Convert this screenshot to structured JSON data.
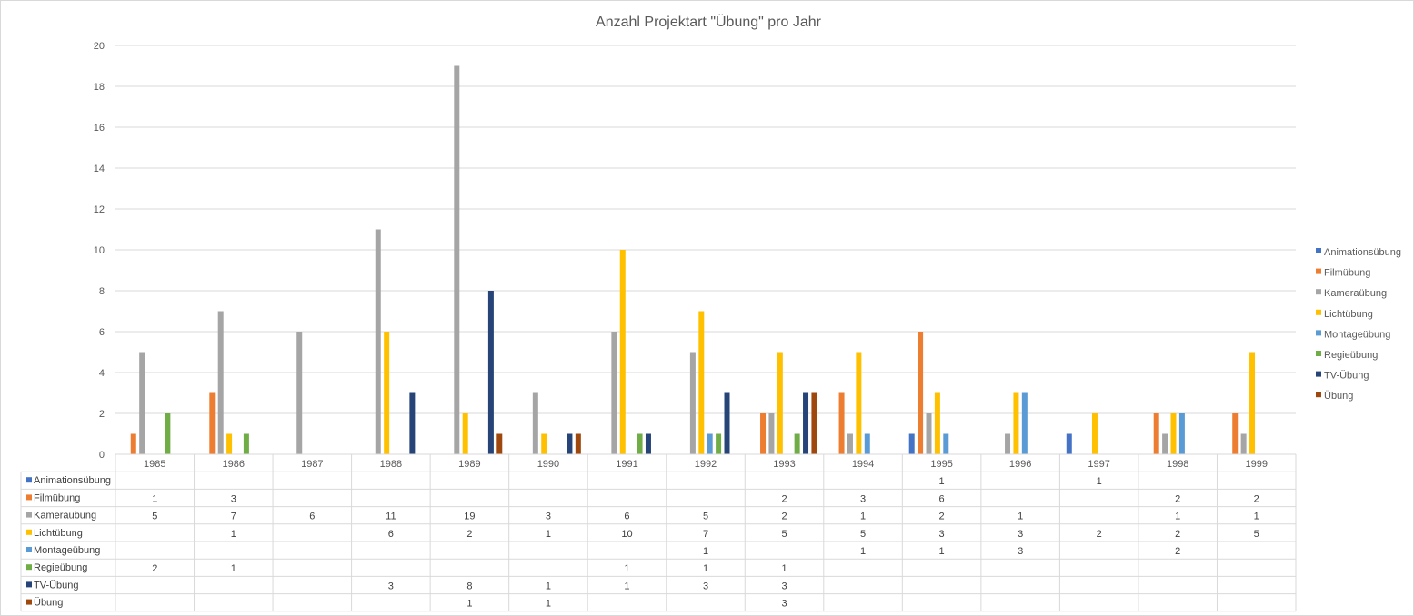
{
  "chart_data": {
    "type": "bar",
    "title": "Anzahl Projektart \"Übung\" pro Jahr",
    "categories": [
      "1985",
      "1986",
      "1987",
      "1988",
      "1989",
      "1990",
      "1991",
      "1992",
      "1993",
      "1994",
      "1995",
      "1996",
      "1997",
      "1998",
      "1999"
    ],
    "ylim": [
      0,
      20
    ],
    "yticks": [
      0,
      2,
      4,
      6,
      8,
      10,
      12,
      14,
      16,
      18,
      20
    ],
    "grid": true,
    "legend_position": "right",
    "data_table": true,
    "series": [
      {
        "name": "Animationsübung",
        "color": "#4472C4",
        "values": [
          null,
          null,
          null,
          null,
          null,
          null,
          null,
          null,
          null,
          null,
          1,
          null,
          1,
          null,
          null
        ]
      },
      {
        "name": "Filmübung",
        "color": "#ED7D31",
        "values": [
          1,
          3,
          null,
          null,
          null,
          null,
          null,
          null,
          2,
          3,
          6,
          null,
          null,
          2,
          2
        ]
      },
      {
        "name": "Kameraübung",
        "color": "#A5A5A5",
        "values": [
          5,
          7,
          6,
          11,
          19,
          3,
          6,
          5,
          2,
          1,
          2,
          1,
          null,
          1,
          1
        ]
      },
      {
        "name": "Lichtübung",
        "color": "#FFC000",
        "values": [
          null,
          1,
          null,
          6,
          2,
          1,
          10,
          7,
          5,
          5,
          3,
          3,
          2,
          2,
          5
        ]
      },
      {
        "name": "Montageübung",
        "color": "#5B9BD5",
        "values": [
          null,
          null,
          null,
          null,
          null,
          null,
          null,
          1,
          null,
          1,
          1,
          3,
          null,
          2,
          null
        ]
      },
      {
        "name": "Regieübung",
        "color": "#70AD47",
        "values": [
          2,
          1,
          null,
          null,
          null,
          null,
          1,
          1,
          1,
          null,
          null,
          null,
          null,
          null,
          null
        ]
      },
      {
        "name": "TV-Übung",
        "color": "#264478",
        "values": [
          null,
          null,
          null,
          3,
          8,
          1,
          1,
          3,
          3,
          null,
          null,
          null,
          null,
          null,
          null
        ]
      },
      {
        "name": "Übung",
        "color": "#9E480E",
        "values": [
          null,
          null,
          null,
          null,
          1,
          1,
          null,
          null,
          3,
          null,
          null,
          null,
          null,
          null,
          null
        ]
      }
    ]
  }
}
